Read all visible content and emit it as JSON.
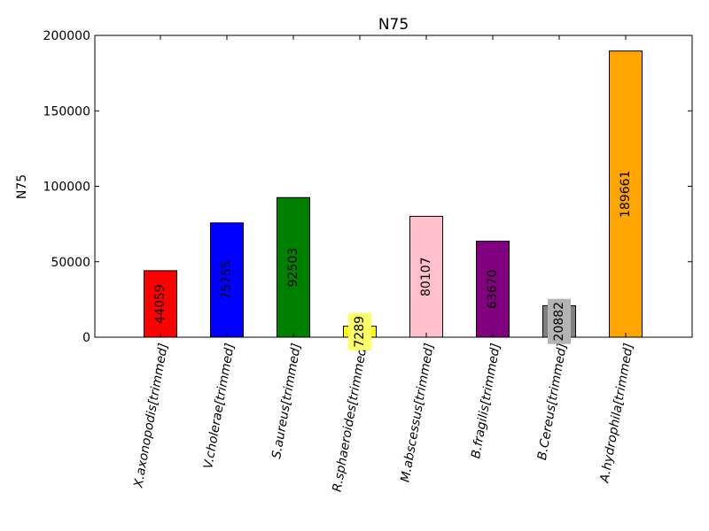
{
  "chart_data": {
    "type": "bar",
    "title": "N75",
    "ylabel": "N75",
    "xlabel": "",
    "ylim": [
      0,
      200000
    ],
    "yticks": [
      0,
      50000,
      100000,
      150000,
      200000
    ],
    "grid": false,
    "categories": [
      "X.axonopodis[trimmed]",
      "V.cholerae[trimmed]",
      "S.aureus[trimmed]",
      "R.sphaeroides[trimmed]",
      "M.abscessus[trimmed]",
      "B.fragilis[trimmed]",
      "B.Cereus[trimmed]",
      "A.hydrophila[trimmed]"
    ],
    "values": [
      44059,
      75755,
      92503,
      7289,
      80107,
      63670,
      20882,
      189661
    ],
    "colors": [
      "#ff0000",
      "#0000ff",
      "#008000",
      "#ffff00",
      "#ffc0cb",
      "#800080",
      "#808080",
      "#ffa500"
    ],
    "label_highlight": [
      "",
      "",
      "",
      "#ffff66",
      "",
      "",
      "#b3b3b3",
      ""
    ]
  }
}
